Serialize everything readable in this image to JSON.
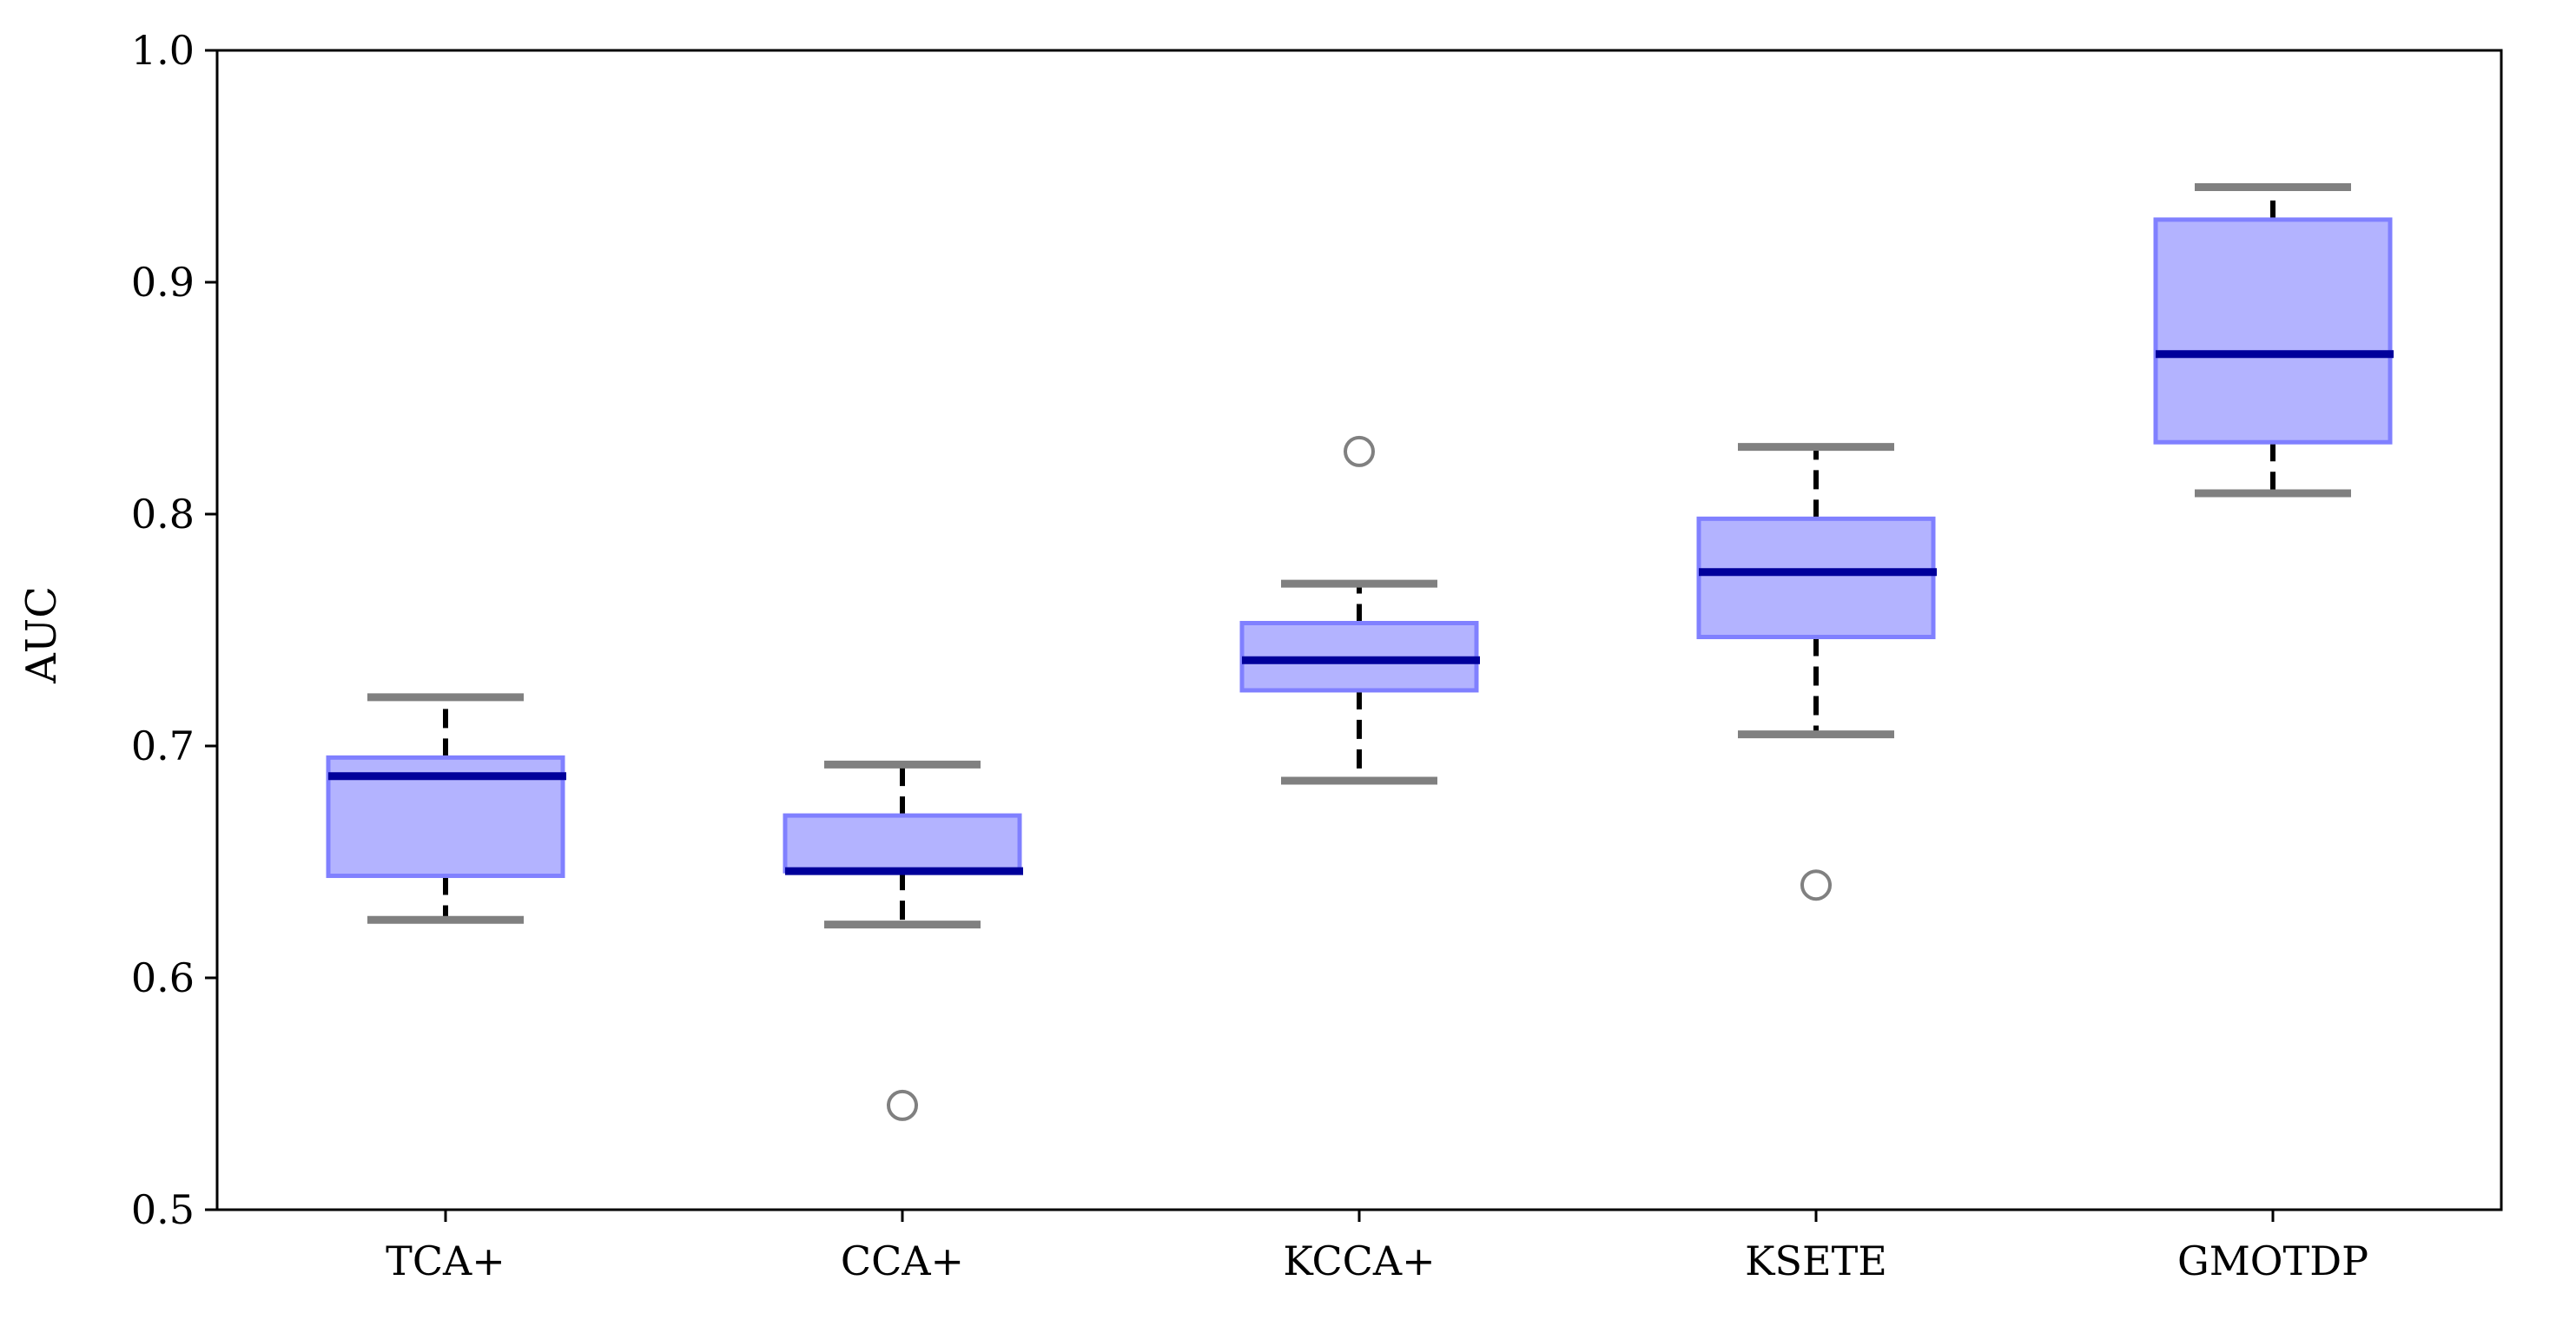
{
  "chart_data": {
    "type": "box",
    "title": "",
    "xlabel": "",
    "ylabel": "AUC",
    "ylim": [
      0.5,
      1.0
    ],
    "yticks": [
      0.5,
      0.6,
      0.7,
      0.8,
      0.9,
      1.0
    ],
    "ytick_labels": [
      "0.5",
      "0.6",
      "0.7",
      "0.8",
      "0.9",
      "1.0"
    ],
    "grid": false,
    "categories": [
      "TCA+",
      "CCA+",
      "KCCA+",
      "KSETE",
      "GMOTDP"
    ],
    "boxes": [
      {
        "label": "TCA+",
        "whisker_low": 0.625,
        "q1": 0.644,
        "median": 0.687,
        "q3": 0.695,
        "whisker_high": 0.721,
        "outliers": []
      },
      {
        "label": "CCA+",
        "whisker_low": 0.623,
        "q1": 0.646,
        "median": 0.646,
        "q3": 0.67,
        "whisker_high": 0.692,
        "outliers": [
          0.545
        ]
      },
      {
        "label": "KCCA+",
        "whisker_low": 0.685,
        "q1": 0.724,
        "median": 0.737,
        "q3": 0.753,
        "whisker_high": 0.77,
        "outliers": [
          0.827
        ]
      },
      {
        "label": "KSETE",
        "whisker_low": 0.705,
        "q1": 0.747,
        "median": 0.775,
        "q3": 0.798,
        "whisker_high": 0.829,
        "outliers": [
          0.64
        ]
      },
      {
        "label": "GMOTDP",
        "whisker_low": 0.809,
        "q1": 0.831,
        "median": 0.869,
        "q3": 0.927,
        "whisker_high": 0.941,
        "outliers": []
      }
    ],
    "colors": {
      "box_fill": "#b3b3ff",
      "box_edge": "#8080ff",
      "median": "#00009b",
      "cap": "#808080",
      "whisker": "#000000",
      "outlier": "#808080"
    }
  }
}
